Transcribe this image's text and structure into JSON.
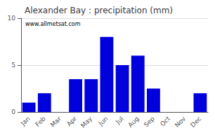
{
  "chart_data": {
    "type": "bar",
    "title": "Alexander Bay : precipitation (mm)",
    "categories": [
      "Jan",
      "Feb",
      "Mar",
      "Apr",
      "May",
      "Jun",
      "Jul",
      "Aug",
      "Sep",
      "Oct",
      "Nov",
      "Dec"
    ],
    "values": [
      1.0,
      2.0,
      0.0,
      3.5,
      3.5,
      8.0,
      5.0,
      6.0,
      2.5,
      0.0,
      0.0,
      2.0
    ],
    "color": "#0000dd",
    "ylim": [
      0,
      10
    ],
    "yticks": [
      0,
      5,
      10
    ],
    "grid": true,
    "annotations": [
      "www.allmetsat.com"
    ]
  }
}
